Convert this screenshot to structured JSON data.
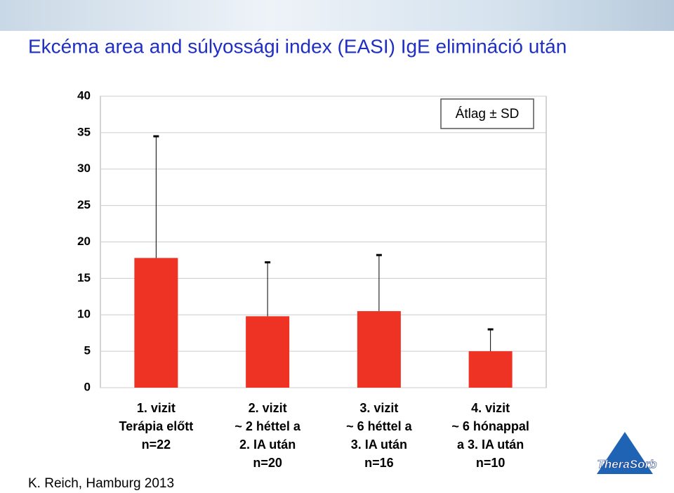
{
  "chart_data": {
    "type": "bar",
    "title": "Ekcéma area and súlyossági index (EASI) IgE elimináció után",
    "categories": [
      [
        "1. vizit",
        "Terápia előtt",
        "n=22"
      ],
      [
        "2. vizit",
        "~ 2 héttel a",
        "2. IA után",
        "n=20"
      ],
      [
        "3. vizit",
        "~ 6 héttel a",
        "3. IA után",
        "n=16"
      ],
      [
        "4. vizit",
        "~ 6 hónappal",
        "a 3. IA után",
        "n=10"
      ]
    ],
    "values": [
      17.8,
      9.8,
      10.5,
      5.0
    ],
    "errors": [
      16.7,
      7.4,
      7.7,
      3.0
    ],
    "color": "#ee3224",
    "ylim": [
      0,
      40
    ],
    "yticks": [
      0,
      5,
      10,
      15,
      20,
      25,
      30,
      35,
      40
    ],
    "grid": true,
    "legend": "Átlag ± SD",
    "source": "K. Reich, Hamburg 2013",
    "logo": "TheraSorb"
  }
}
